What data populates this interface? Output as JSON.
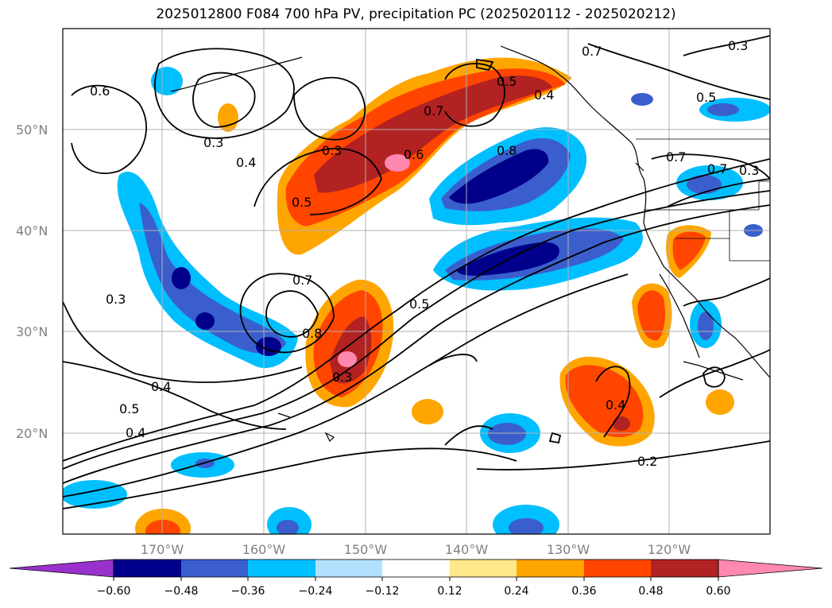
{
  "title": "2025012800 F084 700 hPa PV, precipitation PC (2025020112 - 2025020212)",
  "map": {
    "lat_ticks": [
      "50°N",
      "40°N",
      "30°N",
      "20°N"
    ],
    "lon_ticks": [
      "170°W",
      "160°W",
      "150°W",
      "140°W",
      "130°W",
      "120°W"
    ],
    "contour_labels": [
      "0.6",
      "0.3",
      "0.4",
      "0.3",
      "0.5",
      "0.6",
      "0.7",
      "0.5",
      "0.4",
      "0.8",
      "0.7",
      "0.7",
      "0.5",
      "0.3",
      "0.7",
      "0.8",
      "0.3",
      "0.5",
      "0.3",
      "0.4",
      "0.5",
      "0.4",
      "0.4",
      "0.2",
      "0.7",
      "0.3"
    ]
  },
  "colorbar": {
    "ticks": [
      "−0.60",
      "−0.48",
      "−0.36",
      "−0.24",
      "−0.12",
      "0.12",
      "0.24",
      "0.36",
      "0.48",
      "0.60"
    ],
    "colors": [
      "#9932cc",
      "#00008b",
      "#3a5fcd",
      "#00bfff",
      "#b0e2ff",
      "#ffffff",
      "#ffe78a",
      "#ffa500",
      "#ff4500",
      "#b22222",
      "#ff88b0"
    ]
  }
}
